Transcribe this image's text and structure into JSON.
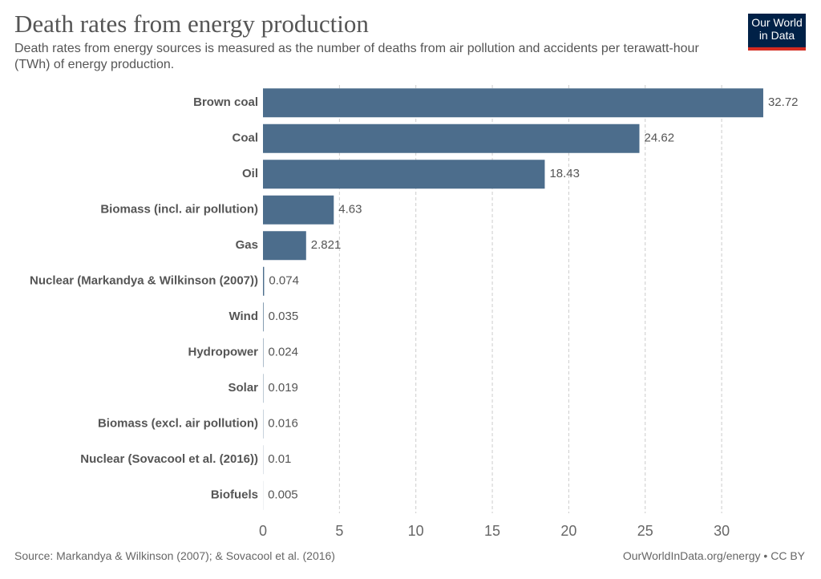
{
  "chart_data": {
    "type": "bar",
    "orientation": "horizontal",
    "title": "Death rates from energy production",
    "subtitle": "Death rates from energy sources is measured as the number of deaths from air pollution and accidents per terawatt-hour (TWh) of energy production.",
    "categories": [
      "Brown coal",
      "Coal",
      "Oil",
      "Biomass (incl. air pollution)",
      "Gas",
      "Nuclear (Markandya & Wilkinson (2007))",
      "Wind",
      "Hydropower",
      "Solar",
      "Biomass (excl. air pollution)",
      "Nuclear (Sovacool et al. (2016))",
      "Biofuels"
    ],
    "values": [
      32.72,
      24.62,
      18.43,
      4.63,
      2.821,
      0.074,
      0.035,
      0.024,
      0.019,
      0.016,
      0.01,
      0.005
    ],
    "color": "#4c6d8c",
    "xlim": [
      0,
      33
    ],
    "xticks": [
      0,
      5,
      10,
      15,
      20,
      25,
      30
    ],
    "grid": true,
    "source": "Source: Markandya & Wilkinson (2007); & Sovacool et al. (2016)",
    "footer_right": "OurWorldInData.org/energy • CC BY",
    "logo": [
      "Our World",
      "in Data"
    ]
  }
}
